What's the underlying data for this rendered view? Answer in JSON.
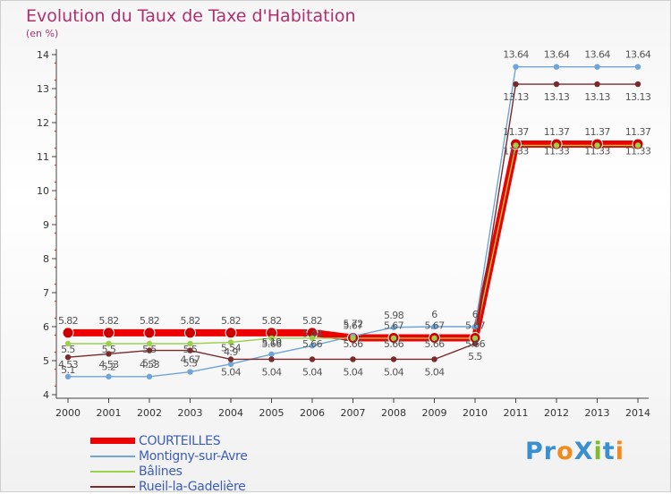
{
  "title": "Evolution du Taux de Taxe d'Habitation",
  "subtitle": "(en %)",
  "logo": {
    "text": "ProXiti",
    "colors": [
      "#3a8fd0",
      "#3a8fd0",
      "#f28a1d",
      "#3a8fd0",
      "#7fba2b",
      "#3a8fd0",
      "#f28a1d"
    ]
  },
  "chart_data": {
    "type": "line",
    "x": [
      2000,
      2001,
      2002,
      2003,
      2004,
      2005,
      2006,
      2007,
      2008,
      2009,
      2010,
      2011,
      2012,
      2013,
      2014
    ],
    "ylim": [
      4,
      14
    ],
    "yticks": [
      4,
      5,
      6,
      7,
      8,
      9,
      10,
      11,
      12,
      13,
      14
    ],
    "grid": false,
    "legend": "bottom-left",
    "series": [
      {
        "name": "COURTEILLES",
        "color": "#ee0000",
        "values": [
          5.82,
          5.82,
          5.82,
          5.82,
          5.82,
          5.82,
          5.82,
          5.67,
          5.67,
          5.67,
          5.67,
          11.37,
          11.37,
          11.37,
          11.37
        ],
        "labels": [
          "5.82",
          "5.82",
          "5.82",
          "5.82",
          "5.82",
          "5.82",
          "5.82",
          "5.67",
          "5.67",
          "5.67",
          "5.67",
          "11.37",
          "11.37",
          "11.37",
          "11.37"
        ]
      },
      {
        "name": "Montigny-sur-Avre",
        "color": "#6ea6d8",
        "values": [
          4.53,
          4.53,
          4.53,
          4.67,
          4.9,
          5.19,
          5.44,
          5.72,
          5.98,
          6,
          6,
          13.64,
          13.64,
          13.64,
          13.64
        ],
        "labels": [
          "4.53",
          "4.53",
          "4.53",
          "4.67",
          "4.9",
          "5.19",
          "5.44",
          "5.72",
          "5.98",
          "6",
          "6",
          "13.64",
          "13.64",
          "13.64",
          "13.64"
        ]
      },
      {
        "name": "Bâlines",
        "color": "#9ad04a",
        "values": [
          5.5,
          5.5,
          5.5,
          5.5,
          5.54,
          5.66,
          5.66,
          5.66,
          5.66,
          5.66,
          5.66,
          11.33,
          11.33,
          11.33,
          11.33
        ],
        "labels": [
          "5.5",
          "5.5",
          "5.5",
          "5.5",
          "5.54",
          "5.66",
          "5.66",
          "5.66",
          "5.66",
          "5.66",
          "5.66",
          "11.33",
          "11.33",
          "11.33",
          "11.33"
        ]
      },
      {
        "name": "Rueil-la-Gadelière",
        "color": "#7a2a2a",
        "values": [
          5.1,
          5.2,
          5.3,
          5.3,
          5.04,
          5.04,
          5.04,
          5.04,
          5.04,
          5.04,
          5.5,
          13.13,
          13.13,
          13.13,
          13.13
        ],
        "labels": [
          "5.1",
          "5.2",
          "5.3",
          "5.3",
          "5.04",
          "5.04",
          "5.04",
          "5.04",
          "5.04",
          "5.04",
          "5.5",
          "13.13",
          "13.13",
          "13.13",
          "13.13"
        ]
      }
    ]
  }
}
